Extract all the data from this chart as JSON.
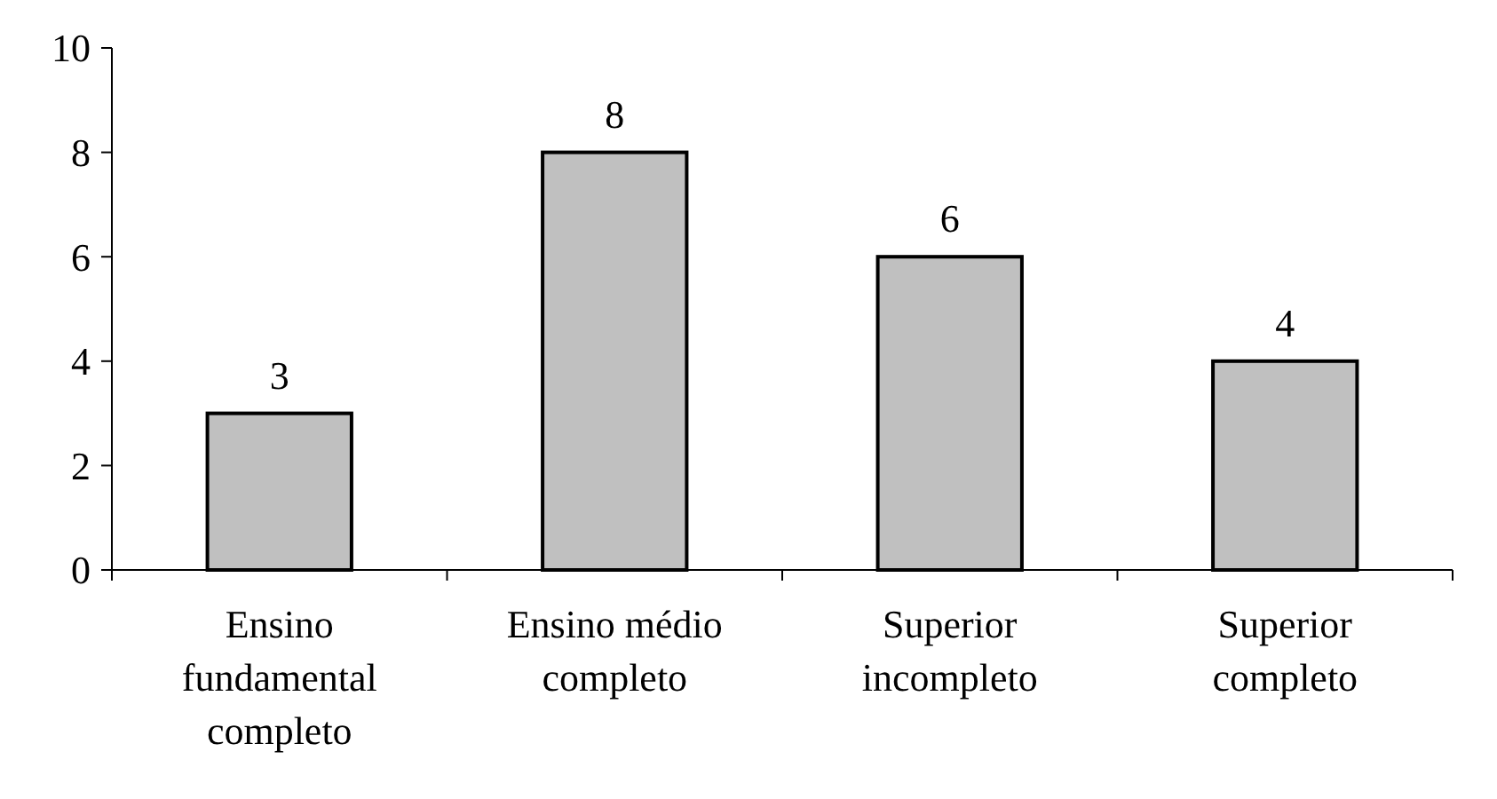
{
  "chart_data": {
    "type": "bar",
    "categories": [
      "Ensino fundamental completo",
      "Ensino médio completo",
      "Superior incompleto",
      "Superior completo"
    ],
    "values": [
      3,
      8,
      6,
      4
    ],
    "color": "#c0c0c0",
    "ylim": [
      0,
      10
    ],
    "yticks": [
      0,
      2,
      4,
      6,
      8,
      10
    ],
    "grid": false,
    "data_labels": true
  }
}
